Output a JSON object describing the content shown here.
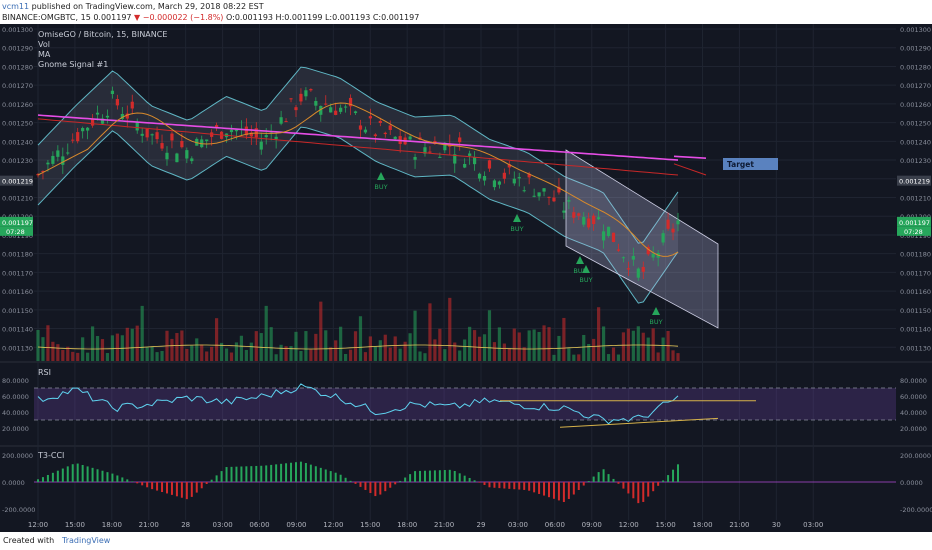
{
  "header": {
    "user": "vcm11",
    "published": "published on TradingView.com, March 29, 2018 08:22 EST",
    "symbol_line": "BINANCE:OMGBTC, 15",
    "last": "0.001197",
    "change": "▼ −0.000022 (−1.8%)",
    "ohlc": "O:0.001193 H:0.001199 L:0.001193 C:0.001197"
  },
  "legend": {
    "title": "OmiseGO / Bitcoin, 15, BINANCE",
    "items": [
      "Vol",
      "MA",
      "Gnome Signal #1"
    ]
  },
  "footer": {
    "created": "Created with",
    "brand": "TradingView"
  },
  "colors": {
    "background": "#131722",
    "up": "#26a65b",
    "down": "#d32b2b",
    "band": "#5fb6c4",
    "ma_long": "#e64de6",
    "ma_red": "#c82828",
    "ma_orange": "#d98a2b",
    "rsi": "#5fd3f0",
    "target": "#5a82bf"
  },
  "chart_data": [
    {
      "type": "line",
      "name": "price",
      "ylim": [
        0.00112,
        0.0013
      ],
      "y_ticks": [
        "0.001300",
        "0.001290",
        "0.001280",
        "0.001270",
        "0.001260",
        "0.001250",
        "0.001240",
        "0.001230",
        "0.001220",
        "0.001210",
        "0.001200",
        "0.001190",
        "0.001180",
        "0.001170",
        "0.001160",
        "0.001150",
        "0.001140",
        "0.001130"
      ],
      "x_ticks": [
        "12:00",
        "15:00",
        "18:00",
        "21:00",
        "28",
        "03:00",
        "06:00",
        "09:00",
        "12:00",
        "15:00",
        "18:00",
        "21:00",
        "29",
        "03:00",
        "06:00",
        "09:00",
        "12:00",
        "15:00",
        "18:00",
        "21:00",
        "30",
        "03:00"
      ],
      "close_labels": [
        {
          "value": "0.001219",
          "time": "",
          "color": "#3a3f4b"
        },
        {
          "value": "0.001197",
          "time": "07:28",
          "color": "#26a65b"
        }
      ],
      "x": [
        "12:00",
        "15:00",
        "18:00",
        "21:00",
        "28",
        "03:00",
        "06:00",
        "09:00",
        "12:00",
        "15:00",
        "18:00",
        "21:00",
        "29",
        "03:00",
        "06:00",
        "09:00",
        "12:00",
        "14:00"
      ],
      "close": [
        0.001222,
        0.001243,
        0.001262,
        0.001243,
        0.001235,
        0.001248,
        0.00124,
        0.001264,
        0.001258,
        0.001245,
        0.001237,
        0.001238,
        0.001225,
        0.001218,
        0.001205,
        0.001197,
        0.001168,
        0.001197
      ],
      "annotations": [
        "BUY",
        "BUY",
        "BUY",
        "BUY",
        "BUY",
        "Target"
      ]
    },
    {
      "type": "line",
      "name": "RSI",
      "title": "RSI",
      "ylim": [
        0,
        100
      ],
      "y_ticks": [
        "80.0000",
        "60.0000",
        "40.0000",
        "20.0000"
      ],
      "bands": [
        70,
        30
      ],
      "x": [
        "12:00",
        "15:00",
        "18:00",
        "21:00",
        "28",
        "03:00",
        "06:00",
        "09:00",
        "12:00",
        "15:00",
        "18:00",
        "21:00",
        "29",
        "03:00",
        "06:00",
        "09:00",
        "12:00",
        "14:00"
      ],
      "values": [
        55,
        68,
        45,
        50,
        58,
        52,
        60,
        72,
        58,
        40,
        50,
        46,
        54,
        48,
        45,
        30,
        32,
        58
      ]
    },
    {
      "type": "area",
      "name": "T3-CCI",
      "title": "T3-CCI",
      "ylim": [
        -250,
        250
      ],
      "y_ticks": [
        "200.0000",
        "0.0000",
        "-200.0000"
      ],
      "x": [
        "12:00",
        "15:00",
        "18:00",
        "21:00",
        "28",
        "03:00",
        "06:00",
        "09:00",
        "12:00",
        "15:00",
        "18:00",
        "21:00",
        "29",
        "03:00",
        "06:00",
        "09:00",
        "12:00",
        "14:00"
      ],
      "values": [
        20,
        140,
        60,
        -50,
        -130,
        110,
        120,
        150,
        60,
        -110,
        80,
        90,
        -40,
        -60,
        -150,
        100,
        -170,
        130
      ]
    }
  ]
}
